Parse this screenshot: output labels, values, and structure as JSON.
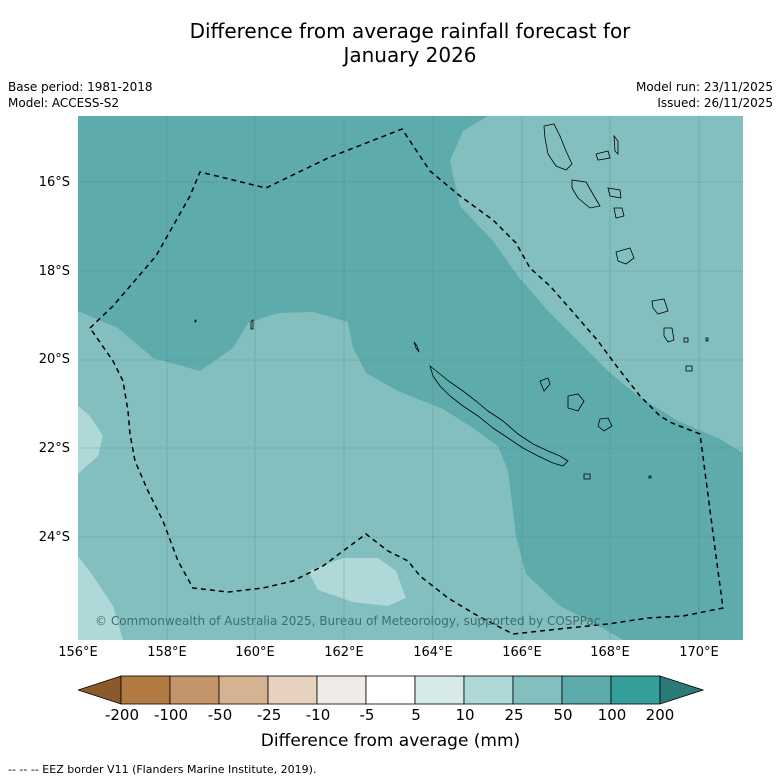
{
  "header": {
    "title_line1": "Difference from average rainfall forecast for",
    "title_line2": "January 2026",
    "base_period": "Base period: 1981-2018",
    "model": "Model: ACCESS-S2",
    "model_run": "Model run: 23/11/2025",
    "issued": "Issued: 26/11/2025"
  },
  "map": {
    "lat_labels": [
      "16°S",
      "18°S",
      "20°S",
      "22°S",
      "24°S"
    ],
    "lon_labels": [
      "156°E",
      "158°E",
      "160°E",
      "162°E",
      "164°E",
      "166°E",
      "168°E",
      "170°E"
    ],
    "copyright": "© Commonwealth of Australia 2025, Bureau of Meteorology, supported by COSPPac",
    "region_colors": {
      "25_to_50": "#84bfbf",
      "50_to_100": "#5eabab",
      "10_to_25": "#afd8d8"
    }
  },
  "colorbar": {
    "title": "Difference from average (mm)",
    "ticks": [
      "-200",
      "-100",
      "-50",
      "-25",
      "-10",
      "-5",
      "5",
      "10",
      "25",
      "50",
      "100",
      "200"
    ],
    "colors": [
      "#8b5a2b",
      "#b07a40",
      "#c4956a",
      "#d4b392",
      "#e6d2be",
      "#efebe7",
      "#ffffff",
      "#d6ebe9",
      "#afd8d8",
      "#84bfbf",
      "#5eabab",
      "#339e9a",
      "#2a7a78"
    ]
  },
  "footnote": "-- -- -- EEZ border V11 (Flanders Marine Institute, 2019)."
}
